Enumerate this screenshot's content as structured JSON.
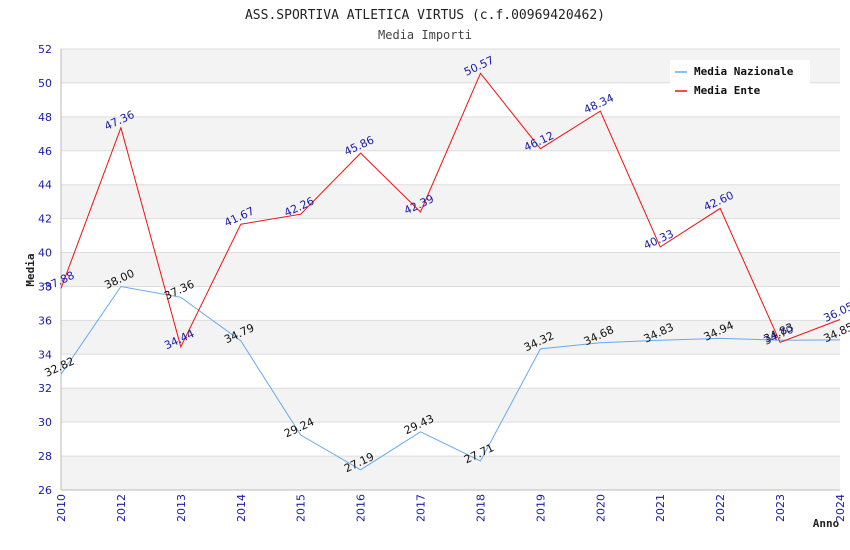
{
  "chart_data": {
    "type": "line",
    "title": "ASS.SPORTIVA ATLETICA VIRTUS (c.f.00969420462)",
    "subtitle": "Media Importi",
    "xlabel": "Anno",
    "ylabel": "Media",
    "ylim": [
      26,
      52
    ],
    "y_ticks": [
      "26",
      "28",
      "30",
      "32",
      "34",
      "36",
      "38",
      "40",
      "42",
      "44",
      "46",
      "48",
      "50",
      "52"
    ],
    "x": [
      "2010",
      "2012",
      "2013",
      "2014",
      "2015",
      "2016",
      "2017",
      "2018",
      "2019",
      "2020",
      "2021",
      "2022",
      "2023",
      "2024"
    ],
    "grid": "horizontal, alternating bands",
    "legend_position": "top-right",
    "series": [
      {
        "name": "Media Nazionale",
        "color": "#66aaee",
        "label_color": "#111111",
        "values": [
          32.82,
          38.0,
          37.36,
          34.79,
          29.24,
          27.19,
          29.43,
          27.71,
          34.32,
          34.68,
          34.83,
          34.94,
          34.83,
          34.85
        ],
        "labels": [
          "32.82",
          "38.00",
          "37.36",
          "34.79",
          "29.24",
          "27.19",
          "29.43",
          "27.71",
          "34.32",
          "34.68",
          "34.83",
          "34.94",
          "34.83",
          "34.85"
        ]
      },
      {
        "name": "Media Ente",
        "color": "#ee1111",
        "label_color": "#1a1aa8",
        "values": [
          37.88,
          47.36,
          34.44,
          41.67,
          42.26,
          45.86,
          42.39,
          50.57,
          46.12,
          48.34,
          40.33,
          42.6,
          34.7,
          36.05
        ],
        "labels": [
          "37.88",
          "47.36",
          "34.44",
          "41.67",
          "42.26",
          "45.86",
          "42.39",
          "50.57",
          "46.12",
          "48.34",
          "40.33",
          "42.60",
          "34.70",
          "36.05"
        ]
      }
    ]
  }
}
